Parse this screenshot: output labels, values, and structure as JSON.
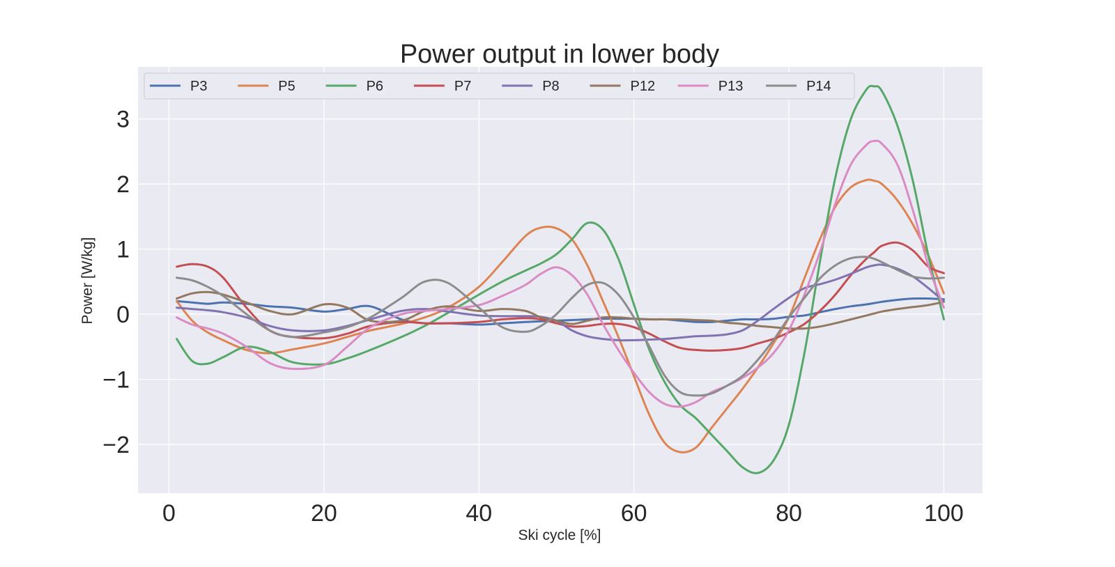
{
  "chart_data": {
    "type": "line",
    "title": "Power output in lower body",
    "xlabel": "Ski cycle [%]",
    "ylabel": "Power [W/kg]",
    "xlim": [
      -4,
      105
    ],
    "ylim": [
      -2.75,
      3.8
    ],
    "xticks": [
      0,
      20,
      40,
      60,
      80,
      100
    ],
    "yticks": [
      -2,
      -1,
      0,
      1,
      2,
      3
    ],
    "ytick_labels": [
      "−2",
      "−1",
      "0",
      "1",
      "2",
      "3"
    ],
    "grid": true,
    "legend_placement": "top, single row",
    "x": [
      1,
      3,
      5,
      7,
      10,
      13,
      16,
      20,
      23,
      26,
      30,
      33,
      36,
      40,
      43,
      46,
      48,
      50,
      52,
      54,
      56,
      58,
      60,
      62,
      64,
      66,
      68,
      70,
      72,
      74,
      76,
      78,
      80,
      82,
      84,
      86,
      88,
      90,
      91,
      92,
      94,
      96,
      98,
      100
    ],
    "series": [
      {
        "name": "P3",
        "color": "#4c72b0",
        "values": [
          0.2,
          0.18,
          0.16,
          0.18,
          0.16,
          0.12,
          0.1,
          0.04,
          0.08,
          0.12,
          -0.08,
          -0.14,
          -0.14,
          -0.16,
          -0.14,
          -0.12,
          -0.11,
          -0.1,
          -0.09,
          -0.08,
          -0.07,
          -0.07,
          -0.07,
          -0.08,
          -0.08,
          -0.1,
          -0.12,
          -0.12,
          -0.1,
          -0.08,
          -0.08,
          -0.07,
          -0.04,
          -0.02,
          0.03,
          0.08,
          0.12,
          0.15,
          0.17,
          0.19,
          0.22,
          0.24,
          0.24,
          0.23
        ]
      },
      {
        "name": "P5",
        "color": "#dd8452",
        "values": [
          0.2,
          -0.1,
          -0.28,
          -0.4,
          -0.55,
          -0.6,
          -0.54,
          -0.45,
          -0.35,
          -0.25,
          -0.15,
          -0.05,
          0.1,
          0.42,
          0.8,
          1.2,
          1.33,
          1.32,
          1.15,
          0.75,
          0.2,
          -0.35,
          -0.95,
          -1.55,
          -1.98,
          -2.12,
          -2.05,
          -1.75,
          -1.45,
          -1.15,
          -0.82,
          -0.45,
          -0.05,
          0.55,
          1.15,
          1.65,
          1.95,
          2.06,
          2.05,
          2.0,
          1.75,
          1.38,
          0.9,
          0.32
        ]
      },
      {
        "name": "P6",
        "color": "#55a868",
        "values": [
          -0.38,
          -0.72,
          -0.76,
          -0.66,
          -0.5,
          -0.58,
          -0.74,
          -0.77,
          -0.68,
          -0.55,
          -0.35,
          -0.18,
          0.02,
          0.3,
          0.5,
          0.67,
          0.78,
          0.92,
          1.15,
          1.4,
          1.3,
          0.85,
          0.15,
          -0.55,
          -1.05,
          -1.4,
          -1.6,
          -1.85,
          -2.1,
          -2.35,
          -2.44,
          -2.25,
          -1.7,
          -0.6,
          0.8,
          2.1,
          3.0,
          3.45,
          3.5,
          3.43,
          2.9,
          2.05,
          0.9,
          -0.08
        ]
      },
      {
        "name": "P7",
        "color": "#c44e52",
        "values": [
          0.73,
          0.77,
          0.73,
          0.56,
          0.1,
          -0.25,
          -0.35,
          -0.37,
          -0.3,
          -0.18,
          -0.12,
          -0.14,
          -0.14,
          -0.12,
          -0.08,
          -0.06,
          -0.08,
          -0.14,
          -0.19,
          -0.18,
          -0.15,
          -0.15,
          -0.2,
          -0.3,
          -0.42,
          -0.52,
          -0.55,
          -0.56,
          -0.55,
          -0.52,
          -0.45,
          -0.38,
          -0.28,
          -0.15,
          0.05,
          0.3,
          0.6,
          0.85,
          0.95,
          1.05,
          1.1,
          0.98,
          0.73,
          0.63
        ]
      },
      {
        "name": "P8",
        "color": "#8172b2",
        "values": [
          0.1,
          0.08,
          0.06,
          0.03,
          -0.05,
          -0.18,
          -0.25,
          -0.25,
          -0.18,
          -0.08,
          0.05,
          0.08,
          0.04,
          -0.02,
          -0.03,
          -0.03,
          -0.04,
          -0.1,
          -0.25,
          -0.34,
          -0.38,
          -0.4,
          -0.4,
          -0.39,
          -0.38,
          -0.36,
          -0.34,
          -0.33,
          -0.31,
          -0.25,
          -0.1,
          0.08,
          0.25,
          0.4,
          0.46,
          0.53,
          0.62,
          0.72,
          0.75,
          0.76,
          0.7,
          0.58,
          0.4,
          0.2
        ]
      },
      {
        "name": "P12",
        "color": "#937860",
        "values": [
          0.24,
          0.32,
          0.34,
          0.3,
          0.18,
          0.05,
          0.0,
          0.15,
          0.1,
          -0.1,
          -0.1,
          0.05,
          0.12,
          0.05,
          0.08,
          0.05,
          -0.05,
          -0.1,
          -0.15,
          -0.1,
          -0.05,
          -0.05,
          -0.07,
          -0.08,
          -0.08,
          -0.08,
          -0.09,
          -0.1,
          -0.13,
          -0.15,
          -0.18,
          -0.2,
          -0.22,
          -0.22,
          -0.19,
          -0.14,
          -0.08,
          -0.02,
          0.01,
          0.04,
          0.08,
          0.11,
          0.14,
          0.19
        ]
      },
      {
        "name": "P13",
        "color": "#da8bc3",
        "values": [
          -0.05,
          -0.16,
          -0.22,
          -0.3,
          -0.5,
          -0.75,
          -0.84,
          -0.78,
          -0.5,
          -0.2,
          0.0,
          0.05,
          0.08,
          0.14,
          0.28,
          0.45,
          0.62,
          0.72,
          0.6,
          0.3,
          -0.15,
          -0.55,
          -0.9,
          -1.2,
          -1.38,
          -1.42,
          -1.35,
          -1.2,
          -1.1,
          -0.98,
          -0.82,
          -0.6,
          -0.25,
          0.3,
          0.95,
          1.7,
          2.3,
          2.6,
          2.66,
          2.62,
          2.3,
          1.6,
          0.75,
          0.1
        ]
      },
      {
        "name": "P14",
        "color": "#8c8c8c",
        "values": [
          0.56,
          0.52,
          0.42,
          0.28,
          0.0,
          -0.25,
          -0.35,
          -0.28,
          -0.2,
          -0.05,
          0.25,
          0.5,
          0.48,
          0.1,
          -0.2,
          -0.27,
          -0.18,
          0.0,
          0.25,
          0.45,
          0.48,
          0.3,
          -0.05,
          -0.5,
          -0.95,
          -1.2,
          -1.25,
          -1.22,
          -1.1,
          -0.95,
          -0.7,
          -0.4,
          -0.05,
          0.25,
          0.55,
          0.75,
          0.86,
          0.88,
          0.85,
          0.8,
          0.68,
          0.58,
          0.55,
          0.56
        ]
      }
    ]
  }
}
